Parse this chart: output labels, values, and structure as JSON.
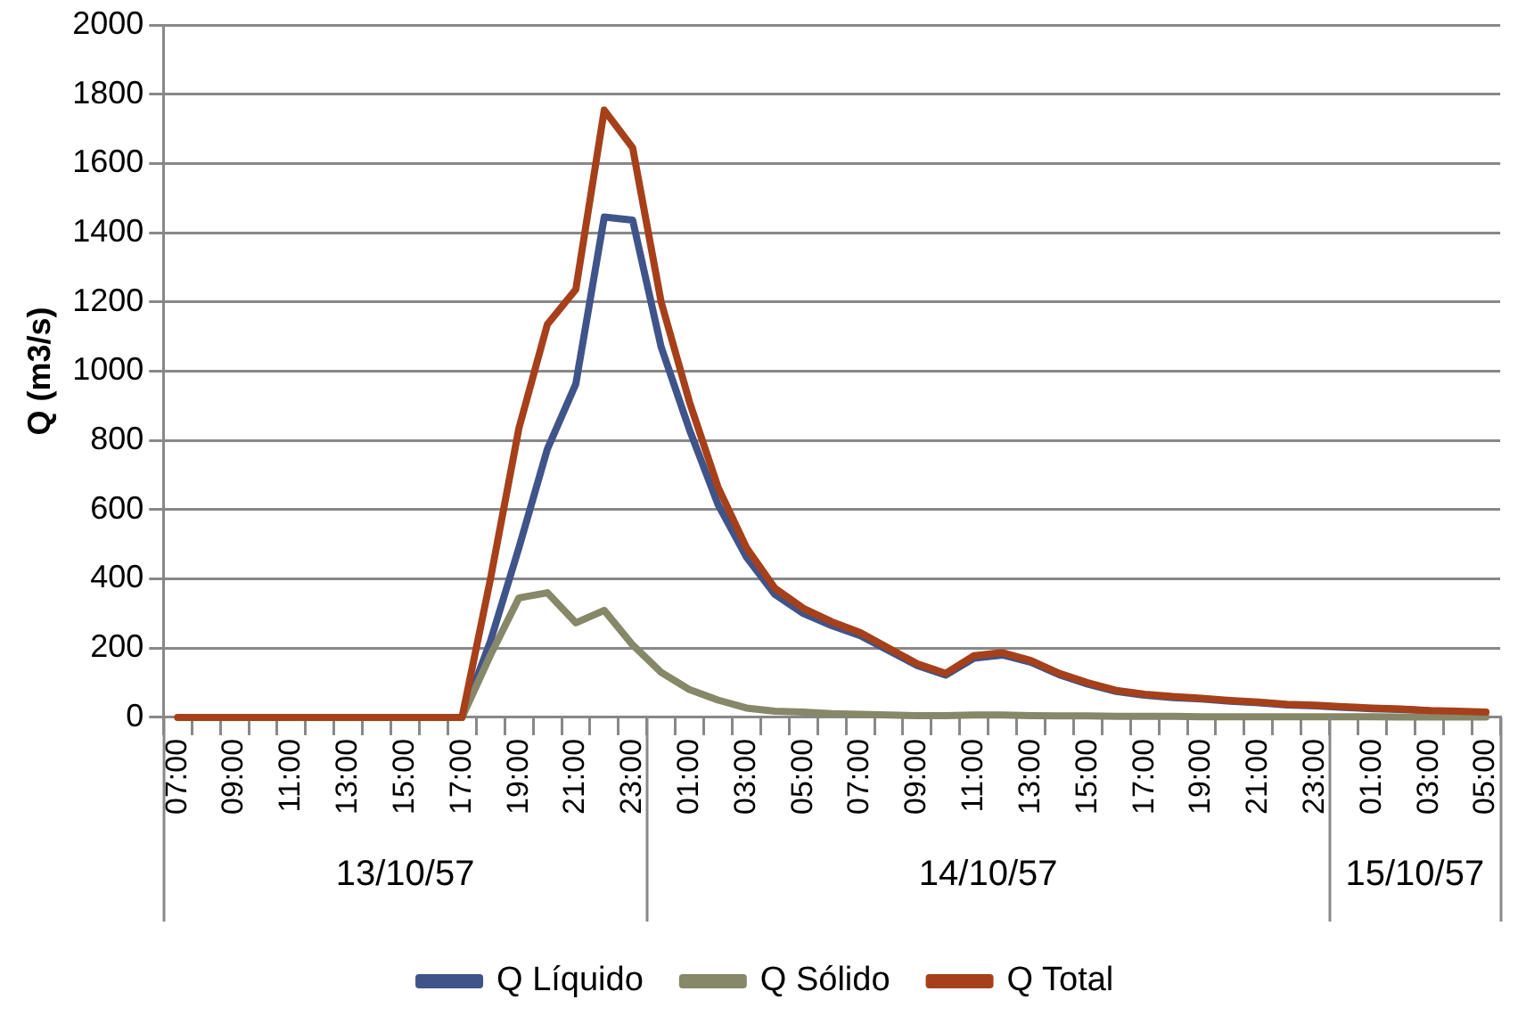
{
  "chart_data": {
    "type": "line",
    "ylabel": "Q (m3/s)",
    "categories": [
      "07:00",
      null,
      "09:00",
      null,
      "11:00",
      null,
      "13:00",
      null,
      "15:00",
      null,
      "17:00",
      null,
      "19:00",
      null,
      "21:00",
      null,
      "23:00",
      null,
      "01:00",
      null,
      "03:00",
      null,
      "05:00",
      null,
      "07:00",
      null,
      "09:00",
      null,
      "11:00",
      null,
      "13:00",
      null,
      "15:00",
      null,
      "17:00",
      null,
      "19:00",
      null,
      "21:00",
      null,
      "23:00",
      null,
      "01:00",
      null,
      "03:00",
      null,
      "05:00"
    ],
    "series": [
      {
        "name": "Q Líquido",
        "color": "#3f5489",
        "values": [
          null,
          null,
          null,
          null,
          null,
          null,
          null,
          null,
          null,
          null,
          0,
          220,
          490,
          775,
          963,
          1445,
          1436,
          1070,
          830,
          615,
          463,
          355,
          300,
          265,
          236,
          193,
          150,
          122,
          171,
          180,
          159,
          123,
          96,
          75,
          64,
          57,
          53,
          47,
          42,
          36,
          33,
          29,
          25,
          23,
          19,
          null,
          null
        ]
      },
      {
        "name": "Q Sólido",
        "color": "#878769",
        "values": [
          null,
          null,
          null,
          null,
          null,
          null,
          null,
          null,
          null,
          null,
          0,
          180,
          345,
          360,
          273,
          309,
          209,
          130,
          80,
          50,
          27,
          18,
          15,
          11,
          9,
          7,
          5,
          5,
          7,
          7,
          5,
          4,
          4,
          3,
          3,
          3,
          2,
          2,
          2,
          2,
          2,
          2,
          2,
          1,
          1,
          1,
          1
        ]
      },
      {
        "name": "Q Total",
        "color": "#a6401a",
        "values": [
          0,
          0,
          0,
          0,
          0,
          0,
          0,
          0,
          0,
          0,
          0,
          400,
          835,
          1135,
          1236,
          1754,
          1645,
          1200,
          910,
          665,
          490,
          373,
          315,
          276,
          245,
          200,
          155,
          127,
          178,
          187,
          164,
          127,
          100,
          78,
          67,
          60,
          55,
          49,
          44,
          38,
          35,
          31,
          27,
          24,
          20,
          18,
          15
        ]
      }
    ],
    "ylim": [
      0,
      2000
    ],
    "yticks": [
      0,
      200,
      400,
      600,
      800,
      1000,
      1200,
      1400,
      1600,
      1800,
      2000
    ],
    "grid": "y",
    "legend": "bottom",
    "marker": "none",
    "line_style": "solid",
    "annotations": [
      "13/10/57",
      "14/10/57",
      "15/10/57"
    ]
  }
}
